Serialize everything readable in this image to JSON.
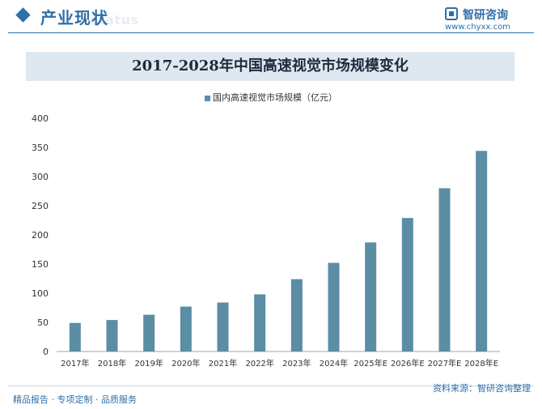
{
  "header": {
    "section_title": "产业现状",
    "section_subtitle": "status",
    "logo_name": "智研咨询",
    "logo_url": "www.chyxx.com"
  },
  "colors": {
    "accent": "#2f6fa6",
    "bar": "#5b8da5",
    "title_band": "#dde8f1"
  },
  "chart_data": {
    "type": "bar",
    "title": "2017-2028年中国高速视觉市场规模变化",
    "xlabel": "",
    "ylabel": "",
    "categories": [
      "2017年",
      "2018年",
      "2019年",
      "2020年",
      "2021年",
      "2022年",
      "2023年",
      "2024年",
      "2025年E",
      "2026年E",
      "2027年E",
      "2028年E"
    ],
    "series": [
      {
        "name": "国内高速视觉市场规模（亿元）",
        "values": [
          49,
          54,
          63,
          77,
          84,
          98,
          124,
          152,
          187,
          229,
          280,
          344
        ]
      }
    ],
    "ylim": [
      0,
      400
    ],
    "yticks": [
      0,
      50,
      100,
      150,
      200,
      250,
      300,
      350,
      400
    ],
    "grid": false,
    "legend": "top-center"
  },
  "footer": {
    "left": "精品报告 · 专项定制 · 品质服务",
    "right": "资料来源：智研咨询整理"
  }
}
